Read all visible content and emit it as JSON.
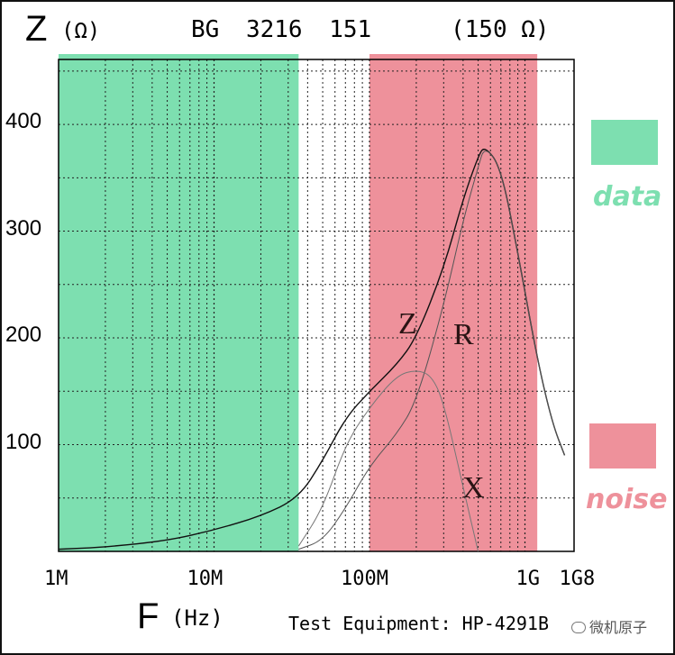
{
  "chart_data": {
    "type": "line",
    "title_parts": {
      "z_symbol": "Z",
      "z_unit": "(Ω)",
      "part_name": "BG 3216 151",
      "rating": "(150 Ω)"
    },
    "xlabel": {
      "symbol": "F",
      "unit": "(Hz)"
    },
    "x_scale": "log",
    "xlim": [
      1000000,
      1800000000
    ],
    "ylim": [
      0,
      500
    ],
    "x_tick_labels": [
      {
        "label": "1M",
        "value": 1000000
      },
      {
        "label": "10M",
        "value": 10000000
      },
      {
        "label": "100M",
        "value": 100000000
      },
      {
        "label": "1G",
        "value": 1000000000
      },
      {
        "label": "1G8",
        "value": 1800000000
      }
    ],
    "y_tick_labels": [
      {
        "label": "100",
        "value": 100
      },
      {
        "label": "200",
        "value": 200
      },
      {
        "label": "300",
        "value": 300
      },
      {
        "label": "400",
        "value": 400
      }
    ],
    "grid": true,
    "series": [
      {
        "name": "Z",
        "x": [
          1000000,
          2000000,
          5000000,
          10000000,
          20000000,
          35000000,
          50000000,
          70000000,
          100000000,
          150000000,
          200000000,
          300000000,
          400000000,
          500000000,
          550000000,
          700000000,
          900000000,
          1200000000,
          1500000000,
          1800000000
        ],
        "y": [
          2,
          4,
          10,
          20,
          33,
          50,
          85,
          125,
          150,
          175,
          200,
          265,
          330,
          370,
          380,
          360,
          280,
          180,
          120,
          90
        ]
      },
      {
        "name": "R",
        "x": [
          35000000,
          50000000,
          70000000,
          100000000,
          150000000,
          200000000,
          300000000,
          400000000,
          500000000,
          550000000,
          700000000,
          900000000,
          1200000000,
          1500000000,
          1800000000
        ],
        "y": [
          2,
          10,
          40,
          80,
          110,
          140,
          230,
          310,
          360,
          380,
          360,
          280,
          180,
          120,
          90
        ]
      },
      {
        "name": "X",
        "x": [
          35000000,
          50000000,
          70000000,
          100000000,
          150000000,
          200000000,
          250000000,
          300000000,
          400000000,
          500000000
        ],
        "y": [
          5,
          40,
          100,
          135,
          165,
          170,
          165,
          140,
          60,
          0
        ]
      }
    ],
    "regions": [
      {
        "label": "data",
        "from": 1000000,
        "to": 35000000,
        "color": "#7ddfb0"
      },
      {
        "label": "noise",
        "from": 100000000,
        "to": 1200000000,
        "color": "#ee919b"
      }
    ],
    "footer": "Test Equipment: HP-4291B",
    "watermark": "微机原子"
  }
}
